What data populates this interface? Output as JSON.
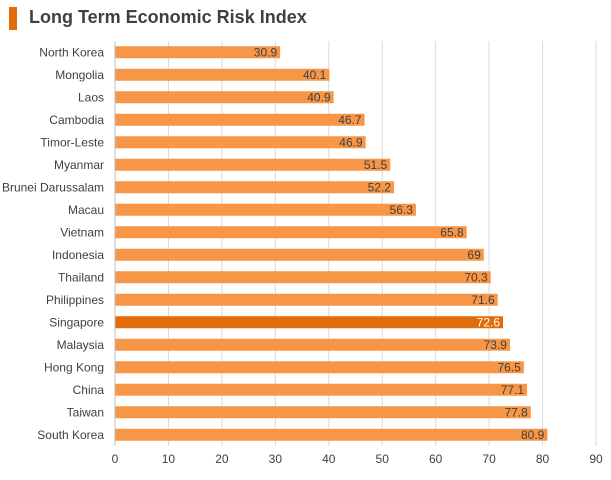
{
  "header": {
    "title": "Long Term Economic Risk Index",
    "accent_color": "#e36c0a"
  },
  "chart_data": {
    "type": "bar",
    "orientation": "horizontal",
    "title": "Long Term Economic Risk Index",
    "xlabel": "",
    "ylabel": "",
    "categories": [
      "North Korea",
      "Mongolia",
      "Laos",
      "Cambodia",
      "Timor-Leste",
      "Myanmar",
      "Brunei Darussalam",
      "Macau",
      "Vietnam",
      "Indonesia",
      "Thailand",
      "Philippines",
      "Singapore",
      "Malaysia",
      "Hong Kong",
      "China",
      "Taiwan",
      "South Korea"
    ],
    "values": [
      30.9,
      40.1,
      40.9,
      46.7,
      46.9,
      51.5,
      52.2,
      56.3,
      65.8,
      69,
      70.3,
      71.6,
      72.6,
      73.9,
      76.5,
      77.1,
      77.8,
      80.9
    ],
    "value_labels": [
      "30.9",
      "40.1",
      "40.9",
      "46.7",
      "46.9",
      "51.5",
      "52.2",
      "56.3",
      "65.8",
      "69",
      "70.3",
      "71.6",
      "72.6",
      "73.9",
      "76.5",
      "77.1",
      "77.8",
      "80.9"
    ],
    "xlim": [
      0,
      90
    ],
    "xticks": [
      "0",
      "10",
      "20",
      "30",
      "40",
      "50",
      "60",
      "70",
      "80",
      "90"
    ],
    "grid": true,
    "legend": "none",
    "highlight_category": "Singapore",
    "colors": {
      "bar": "#f79646",
      "highlight": "#e36c0a",
      "grid": "#d9d9d9",
      "axis": "#bfbfbf",
      "text": "#404040",
      "highlight_label": "#ffffff"
    }
  }
}
